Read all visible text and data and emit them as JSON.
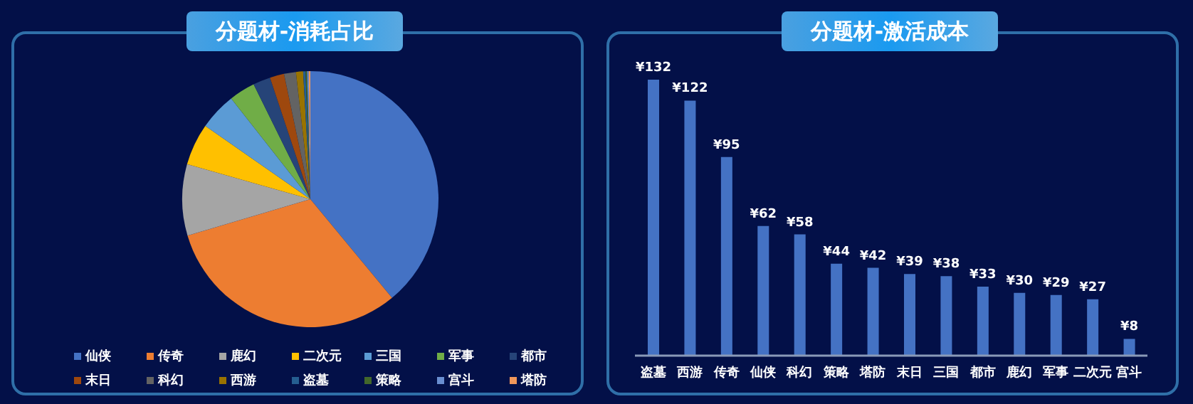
{
  "chart_data": [
    {
      "type": "pie",
      "title": "分题材-消耗占比",
      "legend": "bottom",
      "categories": [
        "仙侠",
        "传奇",
        "鹿幻",
        "二次元",
        "三国",
        "军事",
        "都市",
        "末日",
        "科幻",
        "西游",
        "盗墓",
        "策略",
        "宫斗",
        "塔防"
      ],
      "values": [
        39,
        31.4,
        9,
        5.3,
        4.7,
        3.3,
        2.2,
        1.8,
        1.5,
        0.9,
        0.3,
        0.2,
        0.2,
        0.2
      ],
      "colors": [
        "#4472c4",
        "#ed7d31",
        "#a5a5a5",
        "#ffc000",
        "#5b9bd5",
        "#70ad47",
        "#264478",
        "#9e480e",
        "#636363",
        "#997300",
        "#255e91",
        "#43682b",
        "#698ed0",
        "#f1975a"
      ]
    },
    {
      "type": "bar",
      "title": "分题材-激活成本",
      "categories": [
        "盗墓",
        "西游",
        "传奇",
        "仙侠",
        "科幻",
        "策略",
        "塔防",
        "末日",
        "三国",
        "都市",
        "鹿幻",
        "军事",
        "二次元",
        "宫斗"
      ],
      "values": [
        132,
        122,
        95,
        62,
        58,
        44,
        42,
        39,
        38,
        33,
        30,
        29,
        27,
        8
      ],
      "value_labels": [
        "¥132",
        "¥122",
        "¥95",
        "¥62",
        "¥58",
        "¥44",
        "¥42",
        "¥39",
        "¥38",
        "¥33",
        "¥30",
        "¥29",
        "¥27",
        "¥8"
      ],
      "color": "#4472c4"
    }
  ]
}
